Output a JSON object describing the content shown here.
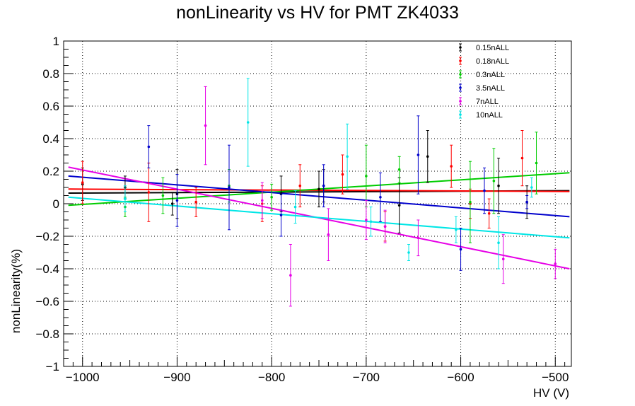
{
  "chart_data": {
    "type": "scatter",
    "title": "nonLinearity vs HV for PMT ZK4033",
    "xlabel": "HV (V)",
    "ylabel": "nonLinearity(%)",
    "xlim": [
      -1020,
      -483
    ],
    "ylim": [
      -1,
      1
    ],
    "x_ticks": [
      -1000,
      -900,
      -800,
      -700,
      -600,
      -500
    ],
    "y_ticks": [
      -1,
      -0.8,
      -0.6,
      -0.4,
      -0.2,
      0,
      0.2,
      0.4,
      0.6,
      0.8,
      1
    ],
    "x_tick_labels": [
      "−1000",
      "−900",
      "−800",
      "−700",
      "−600",
      "−500"
    ],
    "y_tick_labels": [
      "−1",
      "−0.8",
      "−0.6",
      "−0.4",
      "−0.2",
      "0",
      "0.2",
      "0.4",
      "0.6",
      "0.8",
      "1"
    ],
    "grid": true,
    "legend_position": "top-right",
    "series": [
      {
        "name": "0.15nALL",
        "color": "#000000",
        "fit": {
          "x": [
            -1015,
            -485
          ],
          "y": [
            0.065,
            0.08
          ]
        },
        "points": [
          {
            "x": -1000,
            "y": 0.12,
            "err": 0.1
          },
          {
            "x": -955,
            "y": 0.1,
            "err": 0.07
          },
          {
            "x": -905,
            "y": 0.0,
            "err": 0.07
          },
          {
            "x": -900,
            "y": 0.06,
            "err": 0.15
          },
          {
            "x": -790,
            "y": 0.06,
            "err": 0.11
          },
          {
            "x": -750,
            "y": 0.09,
            "err": 0.11
          },
          {
            "x": -745,
            "y": 0.11,
            "err": 0.1
          },
          {
            "x": -665,
            "y": -0.01,
            "err": 0.17
          },
          {
            "x": -635,
            "y": 0.29,
            "err": 0.16
          },
          {
            "x": -560,
            "y": 0.11,
            "err": 0.17
          },
          {
            "x": -530,
            "y": 0.01,
            "err": 0.1
          }
        ]
      },
      {
        "name": "0.18nALL",
        "color": "#ff0000",
        "fit": {
          "x": [
            -1015,
            -485
          ],
          "y": [
            0.09,
            0.075
          ]
        },
        "points": [
          {
            "x": -1000,
            "y": 0.13,
            "err": 0.13
          },
          {
            "x": -930,
            "y": 0.07,
            "err": 0.18
          },
          {
            "x": -880,
            "y": 0.01,
            "err": 0.09
          },
          {
            "x": -810,
            "y": 0.0,
            "err": 0.11
          },
          {
            "x": -770,
            "y": 0.11,
            "err": 0.13
          },
          {
            "x": -725,
            "y": 0.18,
            "err": 0.12
          },
          {
            "x": -680,
            "y": -0.14,
            "err": 0.09
          },
          {
            "x": -610,
            "y": 0.23,
            "err": 0.13
          },
          {
            "x": -590,
            "y": 0.0,
            "err": 0.09
          },
          {
            "x": -570,
            "y": -0.06,
            "err": 0.09
          },
          {
            "x": -535,
            "y": 0.28,
            "err": 0.17
          }
        ]
      },
      {
        "name": "0.3nALL",
        "color": "#00cc00",
        "fit": {
          "x": [
            -1015,
            -485
          ],
          "y": [
            -0.01,
            0.19
          ]
        },
        "points": [
          {
            "x": -955,
            "y": -0.02,
            "err": 0.06
          },
          {
            "x": -915,
            "y": 0.05,
            "err": 0.11
          },
          {
            "x": -845,
            "y": 0.11,
            "err": 0.1
          },
          {
            "x": -800,
            "y": 0.04,
            "err": 0.08
          },
          {
            "x": -700,
            "y": 0.17,
            "err": 0.19
          },
          {
            "x": -665,
            "y": 0.21,
            "err": 0.08
          },
          {
            "x": -590,
            "y": 0.01,
            "err": 0.25
          },
          {
            "x": -565,
            "y": 0.14,
            "err": 0.2
          },
          {
            "x": -520,
            "y": 0.25,
            "err": 0.19
          }
        ]
      },
      {
        "name": "3.5nALL",
        "color": "#0000cc",
        "fit": {
          "x": [
            -1015,
            -485
          ],
          "y": [
            0.17,
            -0.08
          ]
        },
        "points": [
          {
            "x": -930,
            "y": 0.35,
            "err": 0.13
          },
          {
            "x": -900,
            "y": 0.02,
            "err": 0.16
          },
          {
            "x": -845,
            "y": 0.1,
            "err": 0.26
          },
          {
            "x": -790,
            "y": -0.07,
            "err": 0.13
          },
          {
            "x": -745,
            "y": 0.11,
            "err": 0.13
          },
          {
            "x": -685,
            "y": 0.04,
            "err": 0.15
          },
          {
            "x": -645,
            "y": 0.3,
            "err": 0.24
          },
          {
            "x": -600,
            "y": -0.28,
            "err": 0.13
          },
          {
            "x": -575,
            "y": 0.08,
            "err": 0.14
          },
          {
            "x": -530,
            "y": 0.01,
            "err": 0.04
          }
        ]
      },
      {
        "name": "7nALL",
        "color": "#e600e6",
        "fit": {
          "x": [
            -1015,
            -485
          ],
          "y": [
            0.225,
            -0.4
          ]
        },
        "points": [
          {
            "x": -870,
            "y": 0.48,
            "err": 0.24
          },
          {
            "x": -810,
            "y": 0.02,
            "err": 0.11
          },
          {
            "x": -780,
            "y": -0.44,
            "err": 0.19
          },
          {
            "x": -740,
            "y": -0.19,
            "err": 0.16
          },
          {
            "x": -700,
            "y": -0.1,
            "err": 0.12
          },
          {
            "x": -680,
            "y": -0.14,
            "err": 0.1
          },
          {
            "x": -645,
            "y": -0.21,
            "err": 0.11
          },
          {
            "x": -555,
            "y": -0.34,
            "err": 0.15
          },
          {
            "x": -500,
            "y": -0.37,
            "err": 0.09
          }
        ]
      },
      {
        "name": "10nALL",
        "color": "#00e6e6",
        "fit": {
          "x": [
            -1015,
            -485
          ],
          "y": [
            0.04,
            -0.21
          ]
        },
        "points": [
          {
            "x": -955,
            "y": 0.03,
            "err": 0.08
          },
          {
            "x": -825,
            "y": 0.5,
            "err": 0.27
          },
          {
            "x": -775,
            "y": -0.02,
            "err": 0.1
          },
          {
            "x": -720,
            "y": 0.29,
            "err": 0.2
          },
          {
            "x": -695,
            "y": -0.11,
            "err": 0.09
          },
          {
            "x": -655,
            "y": -0.3,
            "err": 0.05
          },
          {
            "x": -605,
            "y": -0.16,
            "err": 0.08
          },
          {
            "x": -560,
            "y": -0.24,
            "err": 0.16
          },
          {
            "x": -525,
            "y": 0.1,
            "err": 0.06
          }
        ]
      }
    ]
  }
}
